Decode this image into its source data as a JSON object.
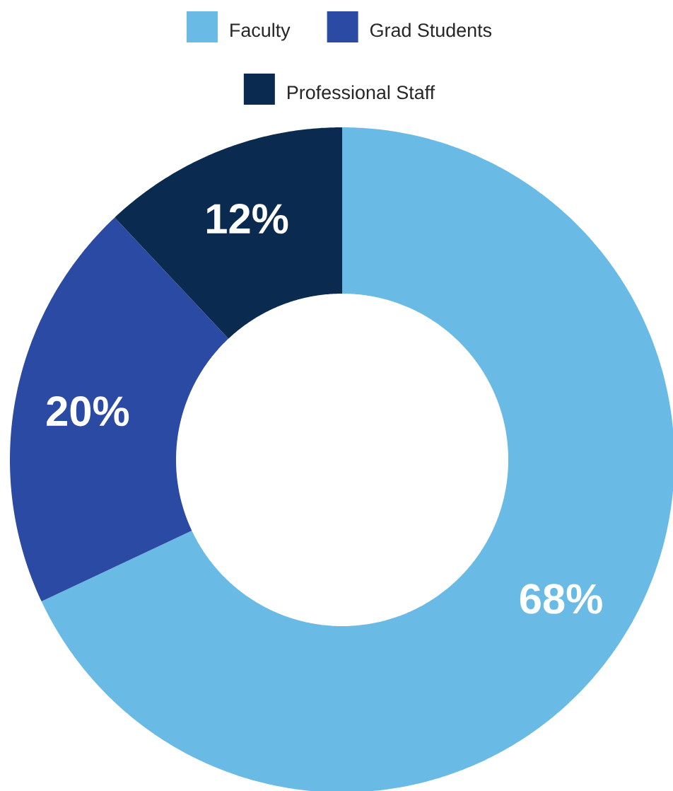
{
  "chart_data": {
    "type": "donut",
    "categories": [
      "Faculty",
      "Grad Students",
      "Professional Staff"
    ],
    "values": [
      68,
      20,
      12
    ],
    "colors": [
      "#69bae5",
      "#2b4aa3",
      "#0b2a50"
    ],
    "value_labels": [
      "68%",
      "20%",
      "12%"
    ],
    "legend": "top"
  }
}
